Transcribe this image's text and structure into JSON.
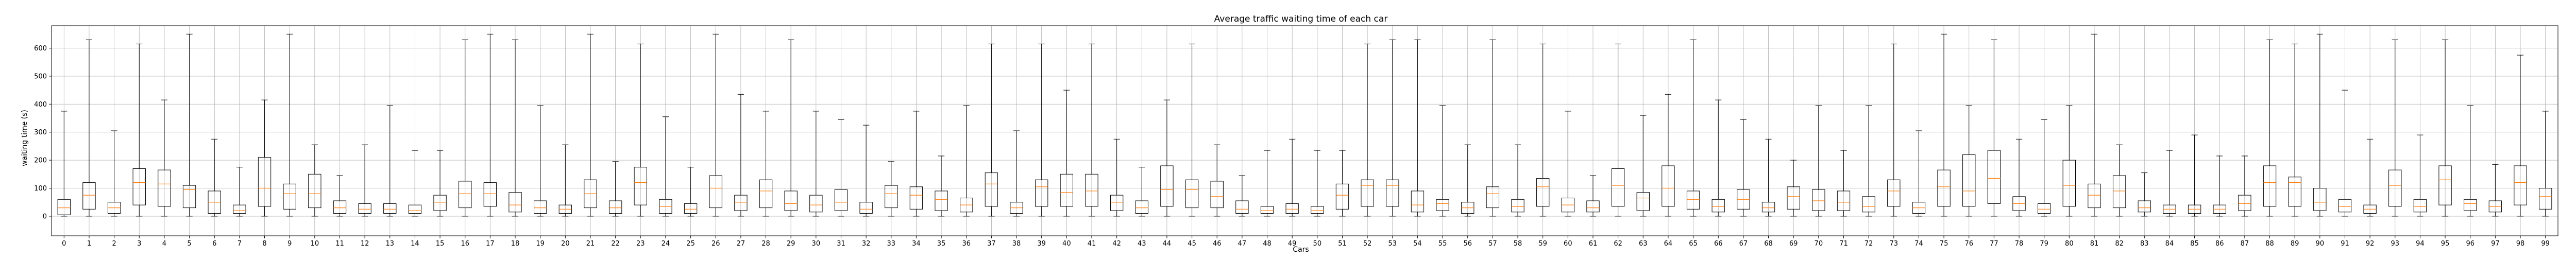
{
  "chart_data": {
    "type": "boxplot",
    "title": "Average traffic waiting time of each car",
    "xlabel": "Cars",
    "ylabel": "waiting time (s)",
    "ylim": [
      -70,
      680
    ],
    "yticks": [
      0,
      100,
      200,
      300,
      400,
      500,
      600
    ],
    "grid": true,
    "colors": {
      "box": "#000000",
      "median": "#ff7f0e",
      "grid": "#b0b0b0"
    },
    "boxes": [
      {
        "x": "0",
        "whisker_low": 0,
        "q1": 5,
        "median": 30,
        "q3": 60,
        "whisker_high": 375
      },
      {
        "x": "1",
        "whisker_low": 0,
        "q1": 25,
        "median": 75,
        "q3": 120,
        "whisker_high": 630
      },
      {
        "x": "2",
        "whisker_low": 0,
        "q1": 10,
        "median": 30,
        "q3": 50,
        "whisker_high": 305
      },
      {
        "x": "3",
        "whisker_low": 0,
        "q1": 40,
        "median": 120,
        "q3": 170,
        "whisker_high": 615
      },
      {
        "x": "4",
        "whisker_low": 0,
        "q1": 35,
        "median": 115,
        "q3": 165,
        "whisker_high": 415
      },
      {
        "x": "5",
        "whisker_low": 0,
        "q1": 30,
        "median": 95,
        "q3": 110,
        "whisker_high": 650
      },
      {
        "x": "6",
        "whisker_low": 0,
        "q1": 10,
        "median": 50,
        "q3": 90,
        "whisker_high": 275
      },
      {
        "x": "7",
        "whisker_low": 0,
        "q1": 10,
        "median": 20,
        "q3": 40,
        "whisker_high": 175
      },
      {
        "x": "8",
        "whisker_low": 0,
        "q1": 35,
        "median": 100,
        "q3": 210,
        "whisker_high": 415
      },
      {
        "x": "9",
        "whisker_low": 0,
        "q1": 25,
        "median": 80,
        "q3": 115,
        "whisker_high": 650
      },
      {
        "x": "10",
        "whisker_low": 0,
        "q1": 30,
        "median": 80,
        "q3": 150,
        "whisker_high": 255
      },
      {
        "x": "11",
        "whisker_low": 0,
        "q1": 10,
        "median": 30,
        "q3": 55,
        "whisker_high": 145
      },
      {
        "x": "12",
        "whisker_low": 0,
        "q1": 10,
        "median": 25,
        "q3": 45,
        "whisker_high": 255
      },
      {
        "x": "13",
        "whisker_low": 0,
        "q1": 10,
        "median": 25,
        "q3": 45,
        "whisker_high": 395
      },
      {
        "x": "14",
        "whisker_low": 0,
        "q1": 10,
        "median": 20,
        "q3": 40,
        "whisker_high": 235
      },
      {
        "x": "15",
        "whisker_low": 0,
        "q1": 20,
        "median": 50,
        "q3": 75,
        "whisker_high": 235
      },
      {
        "x": "16",
        "whisker_low": 0,
        "q1": 30,
        "median": 80,
        "q3": 125,
        "whisker_high": 630
      },
      {
        "x": "17",
        "whisker_low": 0,
        "q1": 35,
        "median": 80,
        "q3": 120,
        "whisker_high": 650
      },
      {
        "x": "18",
        "whisker_low": 0,
        "q1": 15,
        "median": 40,
        "q3": 85,
        "whisker_high": 630
      },
      {
        "x": "19",
        "whisker_low": 0,
        "q1": 10,
        "median": 30,
        "q3": 55,
        "whisker_high": 395
      },
      {
        "x": "20",
        "whisker_low": 0,
        "q1": 10,
        "median": 25,
        "q3": 40,
        "whisker_high": 255
      },
      {
        "x": "21",
        "whisker_low": 0,
        "q1": 30,
        "median": 80,
        "q3": 130,
        "whisker_high": 650
      },
      {
        "x": "22",
        "whisker_low": 0,
        "q1": 10,
        "median": 30,
        "q3": 55,
        "whisker_high": 195
      },
      {
        "x": "23",
        "whisker_low": 0,
        "q1": 40,
        "median": 120,
        "q3": 175,
        "whisker_high": 615
      },
      {
        "x": "24",
        "whisker_low": 0,
        "q1": 10,
        "median": 35,
        "q3": 60,
        "whisker_high": 355
      },
      {
        "x": "25",
        "whisker_low": 0,
        "q1": 10,
        "median": 25,
        "q3": 45,
        "whisker_high": 175
      },
      {
        "x": "26",
        "whisker_low": 0,
        "q1": 30,
        "median": 100,
        "q3": 145,
        "whisker_high": 650
      },
      {
        "x": "27",
        "whisker_low": 0,
        "q1": 20,
        "median": 50,
        "q3": 75,
        "whisker_high": 435
      },
      {
        "x": "28",
        "whisker_low": 0,
        "q1": 30,
        "median": 90,
        "q3": 130,
        "whisker_high": 375
      },
      {
        "x": "29",
        "whisker_low": 0,
        "q1": 20,
        "median": 45,
        "q3": 90,
        "whisker_high": 630
      },
      {
        "x": "30",
        "whisker_low": 0,
        "q1": 15,
        "median": 40,
        "q3": 75,
        "whisker_high": 375
      },
      {
        "x": "31",
        "whisker_low": 0,
        "q1": 20,
        "median": 50,
        "q3": 95,
        "whisker_high": 345
      },
      {
        "x": "32",
        "whisker_low": 0,
        "q1": 10,
        "median": 25,
        "q3": 50,
        "whisker_high": 325
      },
      {
        "x": "33",
        "whisker_low": 0,
        "q1": 30,
        "median": 80,
        "q3": 110,
        "whisker_high": 195
      },
      {
        "x": "34",
        "whisker_low": 0,
        "q1": 25,
        "median": 75,
        "q3": 105,
        "whisker_high": 375
      },
      {
        "x": "35",
        "whisker_low": 0,
        "q1": 20,
        "median": 60,
        "q3": 90,
        "whisker_high": 215
      },
      {
        "x": "36",
        "whisker_low": 0,
        "q1": 15,
        "median": 40,
        "q3": 65,
        "whisker_high": 395
      },
      {
        "x": "37",
        "whisker_low": 0,
        "q1": 35,
        "median": 115,
        "q3": 155,
        "whisker_high": 615
      },
      {
        "x": "38",
        "whisker_low": 0,
        "q1": 10,
        "median": 30,
        "q3": 50,
        "whisker_high": 305
      },
      {
        "x": "39",
        "whisker_low": 0,
        "q1": 35,
        "median": 105,
        "q3": 130,
        "whisker_high": 615
      },
      {
        "x": "40",
        "whisker_low": 0,
        "q1": 35,
        "median": 85,
        "q3": 150,
        "whisker_high": 450
      },
      {
        "x": "41",
        "whisker_low": 0,
        "q1": 35,
        "median": 90,
        "q3": 150,
        "whisker_high": 615
      },
      {
        "x": "42",
        "whisker_low": 0,
        "q1": 20,
        "median": 50,
        "q3": 75,
        "whisker_high": 275
      },
      {
        "x": "43",
        "whisker_low": 0,
        "q1": 10,
        "median": 30,
        "q3": 55,
        "whisker_high": 175
      },
      {
        "x": "44",
        "whisker_low": 0,
        "q1": 35,
        "median": 95,
        "q3": 180,
        "whisker_high": 415
      },
      {
        "x": "45",
        "whisker_low": 0,
        "q1": 30,
        "median": 95,
        "q3": 130,
        "whisker_high": 615
      },
      {
        "x": "46",
        "whisker_low": 0,
        "q1": 30,
        "median": 70,
        "q3": 125,
        "whisker_high": 255
      },
      {
        "x": "47",
        "whisker_low": 0,
        "q1": 10,
        "median": 25,
        "q3": 55,
        "whisker_high": 145
      },
      {
        "x": "48",
        "whisker_low": 0,
        "q1": 10,
        "median": 20,
        "q3": 35,
        "whisker_high": 235
      },
      {
        "x": "49",
        "whisker_low": 0,
        "q1": 10,
        "median": 25,
        "q3": 45,
        "whisker_high": 275
      },
      {
        "x": "50",
        "whisker_low": 0,
        "q1": 10,
        "median": 20,
        "q3": 35,
        "whisker_high": 235
      },
      {
        "x": "51",
        "whisker_low": 0,
        "q1": 25,
        "median": 75,
        "q3": 115,
        "whisker_high": 235
      },
      {
        "x": "52",
        "whisker_low": 0,
        "q1": 35,
        "median": 110,
        "q3": 130,
        "whisker_high": 615
      },
      {
        "x": "53",
        "whisker_low": 0,
        "q1": 35,
        "median": 110,
        "q3": 130,
        "whisker_high": 630
      },
      {
        "x": "54",
        "whisker_low": 0,
        "q1": 15,
        "median": 40,
        "q3": 90,
        "whisker_high": 630
      },
      {
        "x": "55",
        "whisker_low": 0,
        "q1": 20,
        "median": 45,
        "q3": 60,
        "whisker_high": 395
      },
      {
        "x": "56",
        "whisker_low": 0,
        "q1": 10,
        "median": 30,
        "q3": 50,
        "whisker_high": 255
      },
      {
        "x": "57",
        "whisker_low": 0,
        "q1": 30,
        "median": 80,
        "q3": 105,
        "whisker_high": 630
      },
      {
        "x": "58",
        "whisker_low": 0,
        "q1": 15,
        "median": 35,
        "q3": 60,
        "whisker_high": 255
      },
      {
        "x": "59",
        "whisker_low": 0,
        "q1": 35,
        "median": 105,
        "q3": 135,
        "whisker_high": 615
      },
      {
        "x": "60",
        "whisker_low": 0,
        "q1": 15,
        "median": 40,
        "q3": 65,
        "whisker_high": 375
      },
      {
        "x": "61",
        "whisker_low": 0,
        "q1": 15,
        "median": 30,
        "q3": 55,
        "whisker_high": 145
      },
      {
        "x": "62",
        "whisker_low": 0,
        "q1": 35,
        "median": 110,
        "q3": 170,
        "whisker_high": 615
      },
      {
        "x": "63",
        "whisker_low": 0,
        "q1": 20,
        "median": 65,
        "q3": 85,
        "whisker_high": 360
      },
      {
        "x": "64",
        "whisker_low": 0,
        "q1": 35,
        "median": 100,
        "q3": 180,
        "whisker_high": 435
      },
      {
        "x": "65",
        "whisker_low": 0,
        "q1": 25,
        "median": 60,
        "q3": 90,
        "whisker_high": 630
      },
      {
        "x": "66",
        "whisker_low": 0,
        "q1": 15,
        "median": 35,
        "q3": 60,
        "whisker_high": 415
      },
      {
        "x": "67",
        "whisker_low": 0,
        "q1": 25,
        "median": 60,
        "q3": 95,
        "whisker_high": 345
      },
      {
        "x": "68",
        "whisker_low": 0,
        "q1": 15,
        "median": 30,
        "q3": 50,
        "whisker_high": 275
      },
      {
        "x": "69",
        "whisker_low": 0,
        "q1": 25,
        "median": 70,
        "q3": 105,
        "whisker_high": 200
      },
      {
        "x": "70",
        "whisker_low": 0,
        "q1": 20,
        "median": 55,
        "q3": 95,
        "whisker_high": 395
      },
      {
        "x": "71",
        "whisker_low": 0,
        "q1": 20,
        "median": 50,
        "q3": 90,
        "whisker_high": 235
      },
      {
        "x": "72",
        "whisker_low": 0,
        "q1": 15,
        "median": 35,
        "q3": 70,
        "whisker_high": 395
      },
      {
        "x": "73",
        "whisker_low": 0,
        "q1": 35,
        "median": 90,
        "q3": 130,
        "whisker_high": 615
      },
      {
        "x": "74",
        "whisker_low": 0,
        "q1": 10,
        "median": 30,
        "q3": 50,
        "whisker_high": 305
      },
      {
        "x": "75",
        "whisker_low": 0,
        "q1": 35,
        "median": 105,
        "q3": 165,
        "whisker_high": 650
      },
      {
        "x": "76",
        "whisker_low": 0,
        "q1": 35,
        "median": 90,
        "q3": 220,
        "whisker_high": 395
      },
      {
        "x": "77",
        "whisker_low": 0,
        "q1": 45,
        "median": 135,
        "q3": 235,
        "whisker_high": 630
      },
      {
        "x": "78",
        "whisker_low": 0,
        "q1": 20,
        "median": 45,
        "q3": 70,
        "whisker_high": 275
      },
      {
        "x": "79",
        "whisker_low": 0,
        "q1": 10,
        "median": 25,
        "q3": 45,
        "whisker_high": 345
      },
      {
        "x": "80",
        "whisker_low": 0,
        "q1": 35,
        "median": 110,
        "q3": 200,
        "whisker_high": 395
      },
      {
        "x": "81",
        "whisker_low": 0,
        "q1": 30,
        "median": 75,
        "q3": 115,
        "whisker_high": 650
      },
      {
        "x": "82",
        "whisker_low": 0,
        "q1": 30,
        "median": 90,
        "q3": 145,
        "whisker_high": 255
      },
      {
        "x": "83",
        "whisker_low": 0,
        "q1": 15,
        "median": 30,
        "q3": 55,
        "whisker_high": 155
      },
      {
        "x": "84",
        "whisker_low": 0,
        "q1": 10,
        "median": 25,
        "q3": 40,
        "whisker_high": 235
      },
      {
        "x": "85",
        "whisker_low": 0,
        "q1": 10,
        "median": 25,
        "q3": 40,
        "whisker_high": 290
      },
      {
        "x": "86",
        "whisker_low": 0,
        "q1": 10,
        "median": 25,
        "q3": 40,
        "whisker_high": 215
      },
      {
        "x": "87",
        "whisker_low": 0,
        "q1": 20,
        "median": 45,
        "q3": 75,
        "whisker_high": 215
      },
      {
        "x": "88",
        "whisker_low": 0,
        "q1": 35,
        "median": 120,
        "q3": 180,
        "whisker_high": 630
      },
      {
        "x": "89",
        "whisker_low": 0,
        "q1": 35,
        "median": 120,
        "q3": 140,
        "whisker_high": 615
      },
      {
        "x": "90",
        "whisker_low": 0,
        "q1": 20,
        "median": 50,
        "q3": 100,
        "whisker_high": 650
      },
      {
        "x": "91",
        "whisker_low": 0,
        "q1": 15,
        "median": 35,
        "q3": 60,
        "whisker_high": 450
      },
      {
        "x": "92",
        "whisker_low": 0,
        "q1": 10,
        "median": 25,
        "q3": 40,
        "whisker_high": 275
      },
      {
        "x": "93",
        "whisker_low": 0,
        "q1": 35,
        "median": 110,
        "q3": 165,
        "whisker_high": 630
      },
      {
        "x": "94",
        "whisker_low": 0,
        "q1": 15,
        "median": 35,
        "q3": 60,
        "whisker_high": 290
      },
      {
        "x": "95",
        "whisker_low": 0,
        "q1": 40,
        "median": 130,
        "q3": 180,
        "whisker_high": 630
      },
      {
        "x": "96",
        "whisker_low": 0,
        "q1": 20,
        "median": 45,
        "q3": 60,
        "whisker_high": 395
      },
      {
        "x": "97",
        "whisker_low": 0,
        "q1": 15,
        "median": 35,
        "q3": 55,
        "whisker_high": 185
      },
      {
        "x": "98",
        "whisker_low": 0,
        "q1": 40,
        "median": 120,
        "q3": 180,
        "whisker_high": 575
      },
      {
        "x": "99",
        "whisker_low": 0,
        "q1": 25,
        "median": 70,
        "q3": 100,
        "whisker_high": 375
      }
    ]
  }
}
